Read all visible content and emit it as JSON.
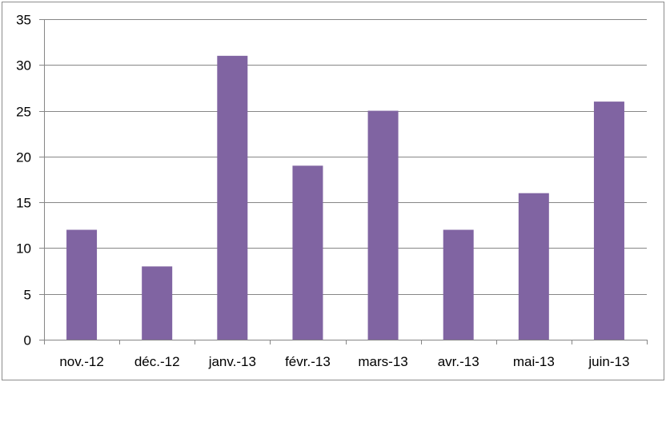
{
  "chart_data": {
    "type": "bar",
    "categories": [
      "nov.-12",
      "déc.-12",
      "janv.-13",
      "févr.-13",
      "mars-13",
      "avr.-13",
      "mai-13",
      "juin-13"
    ],
    "values": [
      12,
      8,
      31,
      19,
      25,
      12,
      16,
      26
    ],
    "ylim": [
      0,
      35
    ],
    "yticks": [
      0,
      5,
      10,
      15,
      20,
      25,
      30,
      35
    ],
    "title": "",
    "xlabel": "",
    "ylabel": "",
    "grid": true,
    "legend": "none",
    "bar_color": "#8064a2",
    "grid_color": "#868686"
  }
}
